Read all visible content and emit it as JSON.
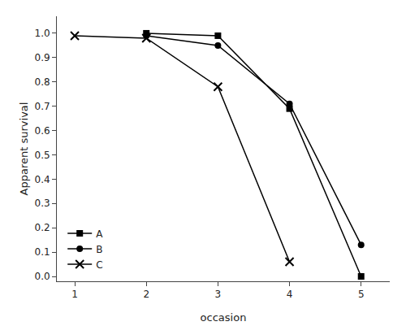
{
  "chart_data": {
    "type": "line",
    "xlabel": "occasion",
    "ylabel": "Apparent survival",
    "series": [
      {
        "name": "A",
        "x": [
          2,
          3,
          4,
          5
        ],
        "values": [
          1.0,
          0.99,
          0.69,
          0.0
        ],
        "color": "#000000",
        "marker": "square",
        "line_style": "solid"
      },
      {
        "name": "B",
        "x": [
          2,
          3,
          4,
          5
        ],
        "values": [
          0.99,
          0.95,
          0.71,
          0.13
        ],
        "color": "#000000",
        "marker": "circle",
        "line_style": "solid"
      },
      {
        "name": "C",
        "x": [
          1,
          2,
          3,
          4
        ],
        "values": [
          0.99,
          0.98,
          0.78,
          0.06
        ],
        "color": "#000000",
        "marker": "x",
        "line_style": "solid"
      }
    ],
    "xlim": [
      0.75,
      5.4
    ],
    "ylim": [
      -0.02,
      1.07
    ],
    "xticks": [
      1,
      2,
      3,
      4,
      5
    ],
    "yticks": [
      {
        "value": 0.0,
        "label": "0.0"
      },
      0.1,
      0.2,
      0.3,
      0.4,
      0.5,
      0.6,
      0.7,
      0.8,
      0.9,
      {
        "value": 1.0,
        "label": "1.0"
      }
    ],
    "grid": false,
    "legend": "lower left"
  }
}
